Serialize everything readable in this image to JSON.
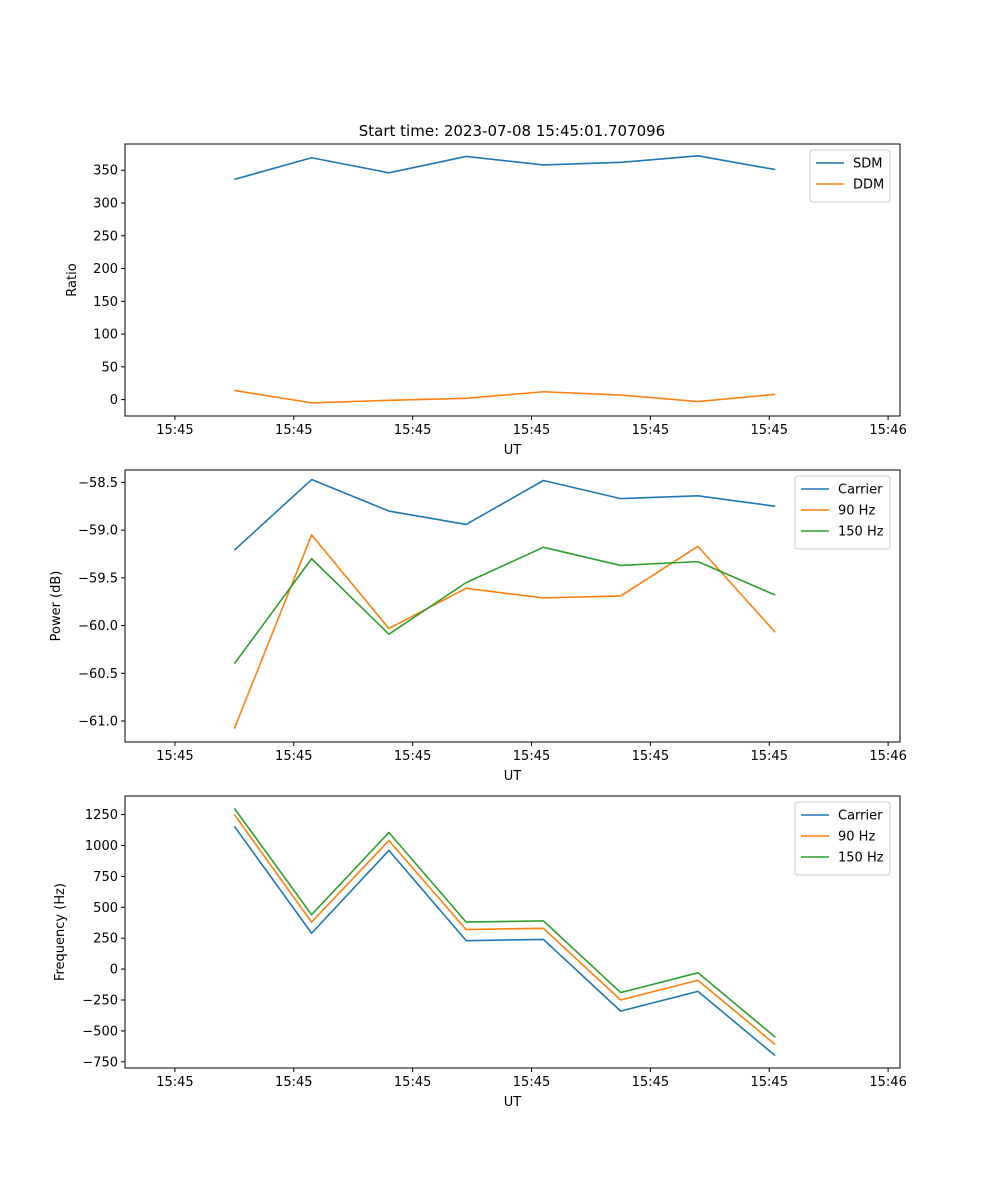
{
  "figure_title": "Start time: 2023-07-08 15:45:01.707096",
  "colors": {
    "blue": "#1f77b4",
    "orange": "#ff7f0e",
    "green": "#2ca02c"
  },
  "chart_data": [
    {
      "type": "line",
      "title": "Start time: 2023-07-08 15:45:01.707096",
      "xlabel": "UT",
      "ylabel": "Ratio",
      "x_units": "seconds after 15:45:00",
      "xlim": [
        -0.21,
        3.05
      ],
      "x_ticks": [
        0,
        0.5,
        1,
        1.5,
        2,
        2.5,
        3
      ],
      "x_tick_labels": [
        "15:45",
        "15:45",
        "15:45",
        "15:45",
        "15:45",
        "15:45",
        "15:46"
      ],
      "ylim": [
        -25,
        390
      ],
      "y_ticks": [
        0,
        50,
        100,
        150,
        200,
        250,
        300,
        350
      ],
      "y_tick_labels": [
        "0",
        "50",
        "100",
        "150",
        "200",
        "250",
        "300",
        "350"
      ],
      "legend_position": "top-right",
      "x": [
        0.25,
        0.575,
        0.9,
        1.225,
        1.55,
        1.875,
        2.2,
        2.525
      ],
      "series": [
        {
          "name": "SDM",
          "color": "#1f77b4",
          "values": [
            336,
            369,
            346,
            371,
            358,
            362,
            372,
            351
          ]
        },
        {
          "name": "DDM",
          "color": "#ff7f0e",
          "values": [
            14,
            -5,
            -1,
            2,
            12,
            7,
            -3,
            8
          ]
        }
      ]
    },
    {
      "type": "line",
      "xlabel": "UT",
      "ylabel": "Power (dB)",
      "x_units": "seconds after 15:45:00",
      "xlim": [
        -0.21,
        3.05
      ],
      "x_ticks": [
        0,
        0.5,
        1,
        1.5,
        2,
        2.5,
        3
      ],
      "x_tick_labels": [
        "15:45",
        "15:45",
        "15:45",
        "15:45",
        "15:45",
        "15:45",
        "15:46"
      ],
      "ylim": [
        -61.22,
        -58.37
      ],
      "y_ticks": [
        -61.0,
        -60.5,
        -60.0,
        -59.5,
        -59.0,
        -58.5
      ],
      "y_tick_labels": [
        "−61.0",
        "−60.5",
        "−60.0",
        "−59.5",
        "−59.0",
        "−58.5"
      ],
      "legend_position": "top-right",
      "x": [
        0.25,
        0.575,
        0.9,
        1.225,
        1.55,
        1.875,
        2.2,
        2.525
      ],
      "series": [
        {
          "name": "Carrier",
          "color": "#1f77b4",
          "values": [
            -59.21,
            -58.47,
            -58.8,
            -58.94,
            -58.48,
            -58.67,
            -58.64,
            -58.75
          ]
        },
        {
          "name": "90 Hz",
          "color": "#ff7f0e",
          "values": [
            -61.08,
            -59.05,
            -60.03,
            -59.61,
            -59.71,
            -59.69,
            -59.17,
            -60.07
          ]
        },
        {
          "name": "150 Hz",
          "color": "#2ca02c",
          "values": [
            -60.4,
            -59.3,
            -60.09,
            -59.55,
            -59.18,
            -59.37,
            -59.33,
            -59.68
          ]
        }
      ]
    },
    {
      "type": "line",
      "xlabel": "UT",
      "ylabel": "Frequency (Hz)",
      "x_units": "seconds after 15:45:00",
      "xlim": [
        -0.21,
        3.05
      ],
      "x_ticks": [
        0,
        0.5,
        1,
        1.5,
        2,
        2.5,
        3
      ],
      "x_tick_labels": [
        "15:45",
        "15:45",
        "15:45",
        "15:45",
        "15:45",
        "15:45",
        "15:46"
      ],
      "ylim": [
        -800,
        1400
      ],
      "y_ticks": [
        -750,
        -500,
        -250,
        0,
        250,
        500,
        750,
        1000,
        1250
      ],
      "y_tick_labels": [
        "−750",
        "−500",
        "−250",
        "0",
        "250",
        "500",
        "750",
        "1000",
        "1250"
      ],
      "legend_position": "top-right",
      "x": [
        0.25,
        0.575,
        0.9,
        1.225,
        1.55,
        1.875,
        2.2,
        2.525
      ],
      "series": [
        {
          "name": "Carrier",
          "color": "#1f77b4",
          "values": [
            1155,
            290,
            960,
            230,
            240,
            -340,
            -180,
            -700
          ]
        },
        {
          "name": "90 Hz",
          "color": "#ff7f0e",
          "values": [
            1250,
            380,
            1040,
            320,
            330,
            -250,
            -90,
            -610
          ]
        },
        {
          "name": "150 Hz",
          "color": "#2ca02c",
          "values": [
            1300,
            440,
            1105,
            380,
            390,
            -190,
            -30,
            -550
          ]
        }
      ]
    }
  ]
}
